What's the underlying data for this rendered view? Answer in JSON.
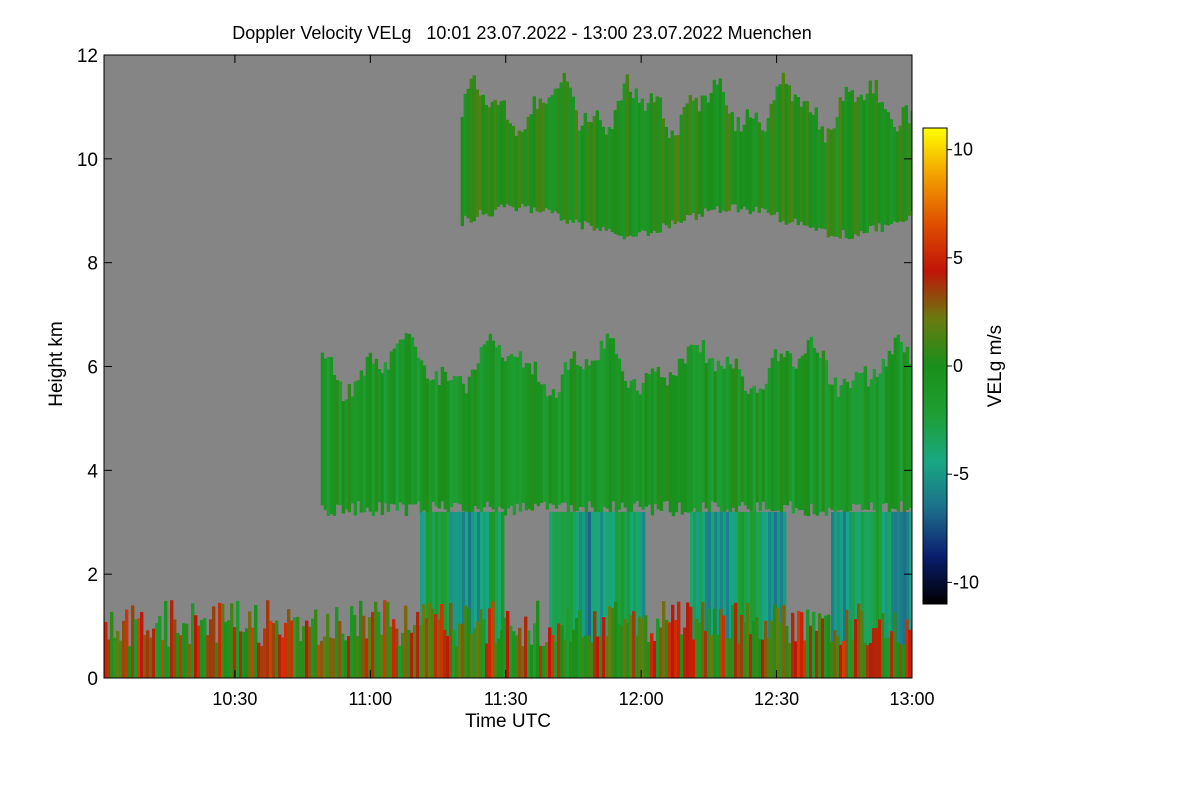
{
  "chart_data": {
    "type": "heatmap",
    "title": "Doppler Velocity VELg   10:01 23.07.2022 - 13:00 23.07.2022 Muenchen",
    "xlabel": "Time UTC",
    "ylabel": "Height km",
    "xlim": [
      "10:01",
      "13:00"
    ],
    "ylim": [
      0,
      12
    ],
    "x_ticks": [
      "10:30",
      "11:00",
      "11:30",
      "12:00",
      "12:30",
      "13:00"
    ],
    "y_ticks": [
      "0",
      "2",
      "4",
      "6",
      "8",
      "10",
      "12"
    ],
    "colorbar": {
      "label": "VELg m/s",
      "range": [
        -11,
        11
      ],
      "ticks": [
        "10",
        "5",
        "0",
        "-5",
        "-10"
      ],
      "colors": [
        "#000000",
        "#0a1e6e",
        "#1d6e8c",
        "#18a882",
        "#1e9e32",
        "#1a8f1a",
        "#6a7a10",
        "#c01408",
        "#e05000",
        "#f2a000",
        "#ffff00"
      ]
    },
    "background_color": "#858585",
    "regions": [
      {
        "feature": "upper cirrus layer",
        "start": "11:20",
        "end": "13:00",
        "bottom_km": 8.8,
        "top_km": 11.0,
        "velocity_ms": 0
      },
      {
        "feature": "mid-level cloud",
        "start": "10:49",
        "end": "13:00",
        "bottom_km": 3.2,
        "top_km": 6.0,
        "velocity_ms": -1
      },
      {
        "feature": "virga fall streaks",
        "start": "11:11",
        "end": "13:00",
        "bottom_km": 0.0,
        "top_km": 3.2,
        "velocity_ms": -4
      },
      {
        "feature": "boundary layer clutter",
        "start": "10:01",
        "end": "13:00",
        "bottom_km": 0.0,
        "top_km": 1.5,
        "velocity_ms": 2
      }
    ]
  }
}
